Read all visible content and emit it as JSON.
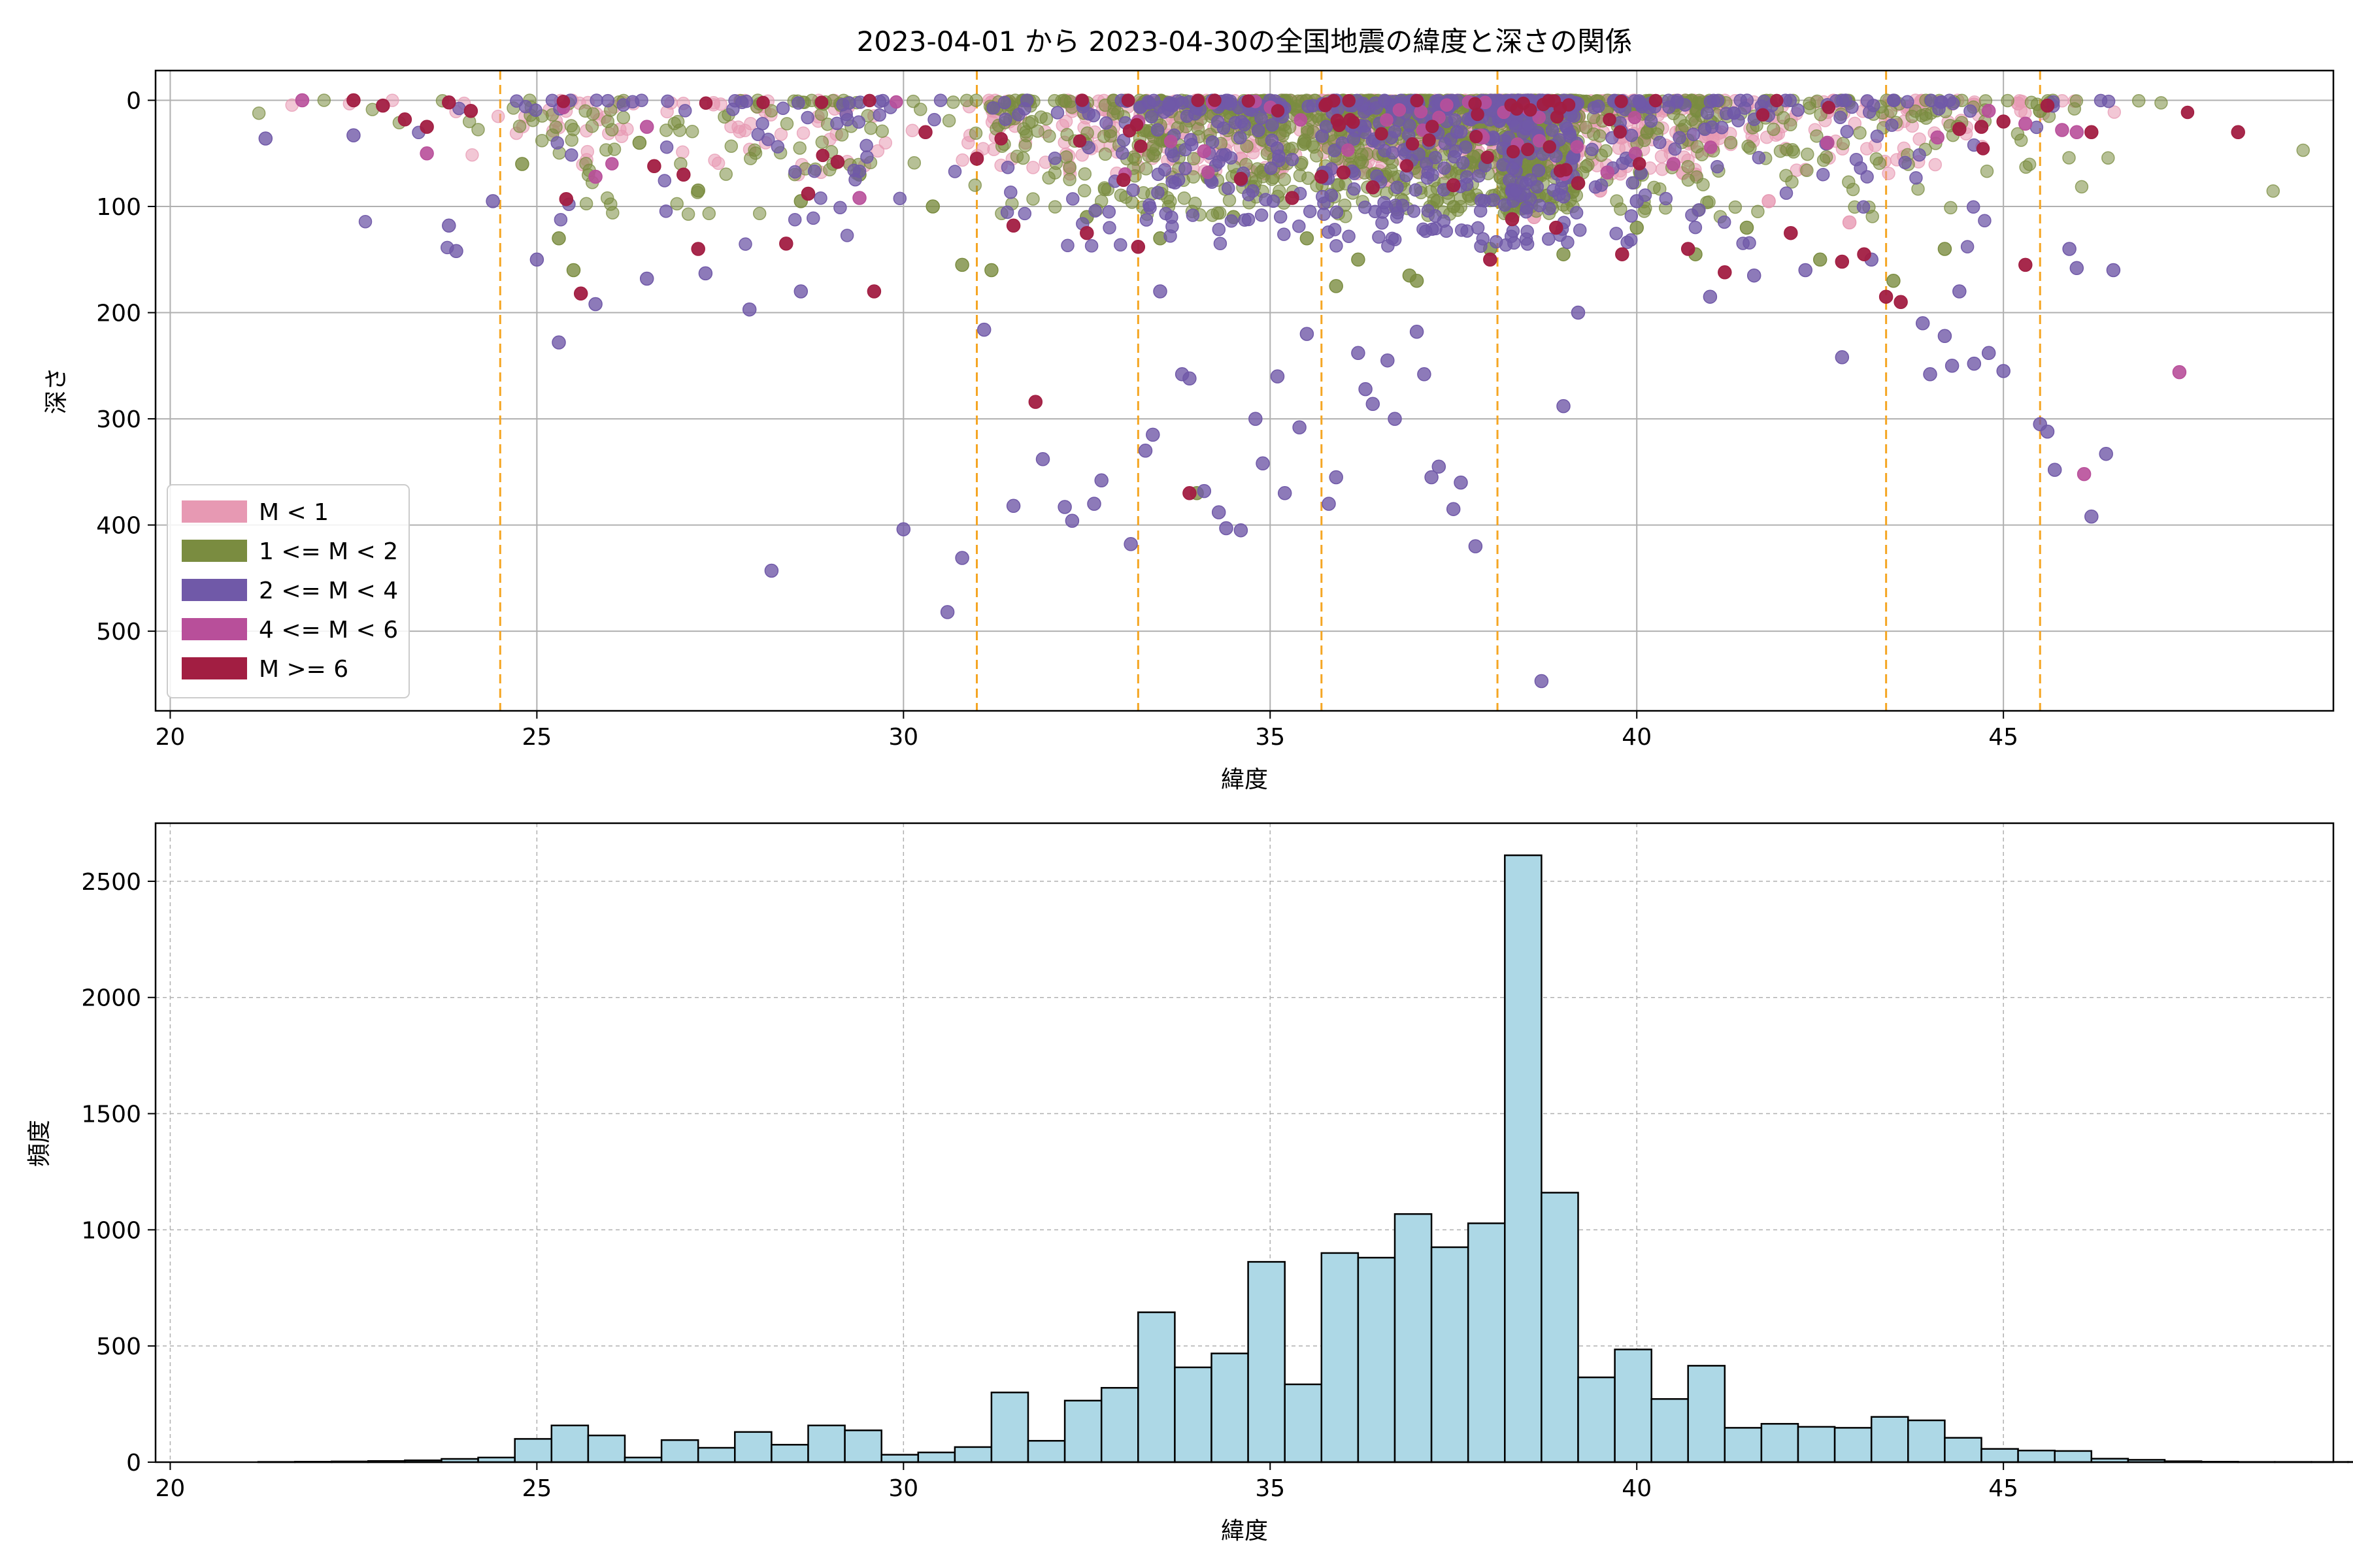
{
  "chart_data": [
    {
      "type": "scatter",
      "title": "2023-04-01 から 2023-04-30の全国地震の緯度と深さの関係",
      "xlabel": "緯度",
      "ylabel": "深さ",
      "xlim": [
        19.8,
        49.5
      ],
      "ylim": [
        575,
        -28
      ],
      "y_inverted": true,
      "xticks": [
        20,
        25,
        30,
        35,
        40,
        45
      ],
      "yticks": [
        0,
        100,
        200,
        300,
        400,
        500
      ],
      "grid": true,
      "legend_position": "lower-left",
      "vlines": [
        24.5,
        31.0,
        33.2,
        35.7,
        38.1,
        43.4,
        45.5
      ],
      "vline_color": "#f5a623",
      "series": [
        {
          "name": "M < 1",
          "color": "#e799b3",
          "cluster_points": 1200,
          "points": [
            [
              31.2,
              2
            ],
            [
              32.5,
              8
            ],
            [
              33.4,
              5
            ],
            [
              34.1,
              12
            ],
            [
              35.0,
              6
            ],
            [
              36.2,
              10
            ],
            [
              37.1,
              4
            ],
            [
              38.0,
              9
            ],
            [
              39.2,
              14
            ],
            [
              40.4,
              8
            ],
            [
              41.5,
              5
            ],
            [
              42.6,
              11
            ],
            [
              43.7,
              7
            ],
            [
              44.6,
              4
            ],
            [
              45.2,
              3
            ],
            [
              33.8,
              30
            ],
            [
              35.9,
              40
            ],
            [
              37.8,
              60
            ],
            [
              39.5,
              85
            ],
            [
              41.8,
              95
            ],
            [
              42.9,
              115
            ],
            [
              36.6,
              75
            ],
            [
              34.6,
              55
            ],
            [
              38.6,
              110
            ],
            [
              40.8,
              70
            ]
          ]
        },
        {
          "name": "1 <= M < 2",
          "color": "#7a8c40",
          "cluster_points": 1500,
          "points": [
            [
              24.8,
              60
            ],
            [
              25.3,
              130
            ],
            [
              26.4,
              40
            ],
            [
              27.2,
              85
            ],
            [
              28.6,
              95
            ],
            [
              29.4,
              70
            ],
            [
              30.4,
              100
            ],
            [
              31.2,
              160
            ],
            [
              32.5,
              110
            ],
            [
              33.5,
              130
            ],
            [
              34.5,
              110
            ],
            [
              35.5,
              130
            ],
            [
              36.2,
              150
            ],
            [
              37.0,
              170
            ],
            [
              38.0,
              140
            ],
            [
              39.0,
              145
            ],
            [
              40.0,
              120
            ],
            [
              40.8,
              145
            ],
            [
              41.5,
              120
            ],
            [
              42.5,
              150
            ],
            [
              43.5,
              170
            ],
            [
              44.2,
              140
            ],
            [
              45.5,
              10
            ],
            [
              34.0,
              370
            ],
            [
              25.5,
              160
            ],
            [
              30.8,
              155
            ],
            [
              35.9,
              175
            ],
            [
              36.9,
              165
            ]
          ]
        },
        {
          "name": "2 <= M < 4",
          "color": "#7059a8",
          "cluster_points": 700,
          "points": [
            [
              21.3,
              36
            ],
            [
              22.5,
              33
            ],
            [
              23.8,
              118
            ],
            [
              23.9,
              142
            ],
            [
              24.4,
              95
            ],
            [
              25.0,
              150
            ],
            [
              25.3,
              228
            ],
            [
              25.8,
              192
            ],
            [
              26.5,
              168
            ],
            [
              27.3,
              163
            ],
            [
              27.9,
              197
            ],
            [
              28.2,
              443
            ],
            [
              28.6,
              180
            ],
            [
              30.0,
              404
            ],
            [
              30.6,
              482
            ],
            [
              30.8,
              431
            ],
            [
              31.1,
              216
            ],
            [
              31.5,
              382
            ],
            [
              31.9,
              338
            ],
            [
              32.2,
              383
            ],
            [
              32.3,
              396
            ],
            [
              32.6,
              380
            ],
            [
              32.7,
              358
            ],
            [
              33.1,
              418
            ],
            [
              33.3,
              330
            ],
            [
              33.4,
              315
            ],
            [
              33.5,
              180
            ],
            [
              33.8,
              258
            ],
            [
              33.9,
              262
            ],
            [
              34.1,
              368
            ],
            [
              34.3,
              388
            ],
            [
              34.4,
              403
            ],
            [
              34.6,
              405
            ],
            [
              34.8,
              300
            ],
            [
              34.9,
              342
            ],
            [
              35.1,
              260
            ],
            [
              35.2,
              370
            ],
            [
              35.4,
              308
            ],
            [
              35.5,
              220
            ],
            [
              35.8,
              380
            ],
            [
              35.9,
              355
            ],
            [
              36.2,
              238
            ],
            [
              36.3,
              272
            ],
            [
              36.4,
              286
            ],
            [
              36.6,
              245
            ],
            [
              36.7,
              300
            ],
            [
              37.0,
              218
            ],
            [
              37.1,
              258
            ],
            [
              37.2,
              355
            ],
            [
              37.3,
              345
            ],
            [
              37.5,
              385
            ],
            [
              37.6,
              360
            ],
            [
              37.8,
              420
            ],
            [
              39.0,
              288
            ],
            [
              39.2,
              200
            ],
            [
              38.7,
              547
            ],
            [
              40.0,
              95
            ],
            [
              42.8,
              242
            ],
            [
              43.9,
              210
            ],
            [
              44.0,
              258
            ],
            [
              44.2,
              222
            ],
            [
              44.3,
              250
            ],
            [
              44.6,
              248
            ],
            [
              44.8,
              238
            ],
            [
              45.0,
              255
            ],
            [
              45.5,
              305
            ],
            [
              45.6,
              312
            ],
            [
              45.7,
              348
            ],
            [
              46.2,
              392
            ],
            [
              46.4,
              333
            ],
            [
              46.5,
              160
            ],
            [
              46.0,
              158
            ],
            [
              45.9,
              140
            ],
            [
              44.4,
              180
            ],
            [
              41.0,
              185
            ],
            [
              41.6,
              165
            ],
            [
              42.3,
              160
            ],
            [
              43.2,
              150
            ]
          ]
        },
        {
          "name": "4 <= M < 6",
          "color": "#b84f9a",
          "cluster_points": 30,
          "points": [
            [
              21.8,
              0
            ],
            [
              23.5,
              50
            ],
            [
              25.8,
              72
            ],
            [
              29.4,
              92
            ],
            [
              34.1,
              48
            ],
            [
              39.6,
              68
            ],
            [
              42.6,
              40
            ],
            [
              44.1,
              35
            ],
            [
              44.8,
              10
            ],
            [
              45.3,
              22
            ],
            [
              45.8,
              28
            ],
            [
              46.0,
              30
            ],
            [
              46.1,
              352
            ],
            [
              47.4,
              256
            ],
            [
              26.5,
              25
            ],
            [
              33.2,
              20
            ],
            [
              37.9,
              35
            ],
            [
              40.5,
              60
            ]
          ]
        },
        {
          "name": "M >= 6",
          "color": "#a21e42",
          "cluster_points": 60,
          "points": [
            [
              22.5,
              0
            ],
            [
              22.9,
              5
            ],
            [
              23.2,
              18
            ],
            [
              23.5,
              25
            ],
            [
              23.8,
              2
            ],
            [
              24.1,
              10
            ],
            [
              25.4,
              93
            ],
            [
              25.6,
              182
            ],
            [
              26.6,
              62
            ],
            [
              27.0,
              70
            ],
            [
              27.2,
              140
            ],
            [
              28.4,
              135
            ],
            [
              28.7,
              88
            ],
            [
              29.1,
              58
            ],
            [
              29.6,
              180
            ],
            [
              30.3,
              30
            ],
            [
              31.0,
              55
            ],
            [
              31.5,
              118
            ],
            [
              31.8,
              284
            ],
            [
              32.5,
              125
            ],
            [
              33.0,
              75
            ],
            [
              33.2,
              138
            ],
            [
              33.9,
              370
            ],
            [
              34.6,
              74
            ],
            [
              35.3,
              92
            ],
            [
              35.7,
              72
            ],
            [
              36.0,
              68
            ],
            [
              36.4,
              82
            ],
            [
              37.5,
              80
            ],
            [
              38.0,
              150
            ],
            [
              38.3,
              112
            ],
            [
              38.9,
              120
            ],
            [
              39.2,
              78
            ],
            [
              39.8,
              145
            ],
            [
              40.7,
              140
            ],
            [
              41.2,
              162
            ],
            [
              42.1,
              125
            ],
            [
              42.8,
              152
            ],
            [
              43.1,
              145
            ],
            [
              43.4,
              185
            ],
            [
              43.6,
              190
            ],
            [
              44.4,
              27
            ],
            [
              44.7,
              25
            ],
            [
              45.0,
              20
            ],
            [
              45.3,
              155
            ],
            [
              45.6,
              5
            ],
            [
              46.2,
              30
            ],
            [
              48.2,
              30
            ]
          ]
        }
      ]
    },
    {
      "type": "bar",
      "subtype": "histogram",
      "xlabel": "緯度",
      "ylabel": "頻度",
      "xlim": [
        19.8,
        49.5
      ],
      "ylim": [
        0,
        2750
      ],
      "xticks": [
        20,
        25,
        30,
        35,
        40,
        45
      ],
      "yticks": [
        0,
        500,
        1000,
        1500,
        2000,
        2500
      ],
      "grid": true,
      "bar_color": "#add8e6",
      "bin_width": 0.5,
      "bins_start": 21.2,
      "values": [
        1,
        2,
        3,
        5,
        8,
        14,
        20,
        100,
        158,
        115,
        20,
        95,
        62,
        130,
        75,
        158,
        137,
        32,
        42,
        65,
        300,
        92,
        265,
        320,
        645,
        408,
        468,
        862,
        335,
        900,
        880,
        1068,
        925,
        1028,
        2612,
        1160,
        365,
        485,
        272,
        415,
        148,
        165,
        152,
        148,
        195,
        180,
        105,
        57,
        50,
        48,
        15,
        10,
        4,
        2,
        1,
        1,
        1,
        1
      ]
    }
  ]
}
